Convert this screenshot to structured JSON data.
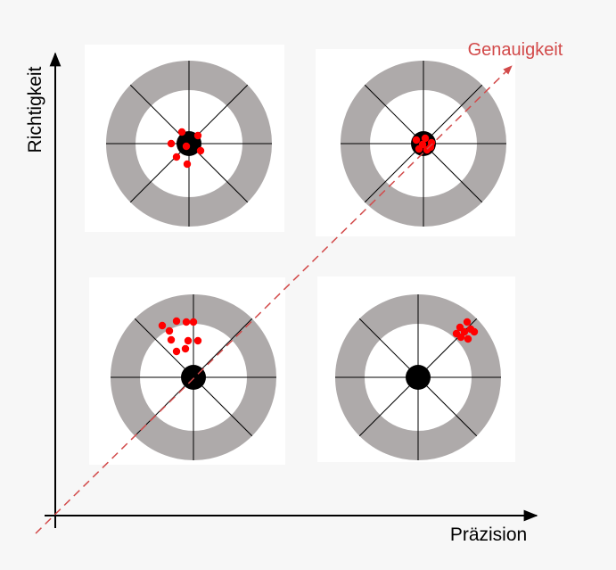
{
  "labels": {
    "y_axis": "Richtigkeit",
    "x_axis": "Präzision",
    "diagonal": "Genauigkeit"
  },
  "colors": {
    "background": "#f7f7f7",
    "panel": "#ffffff",
    "ring": "#aeaaaa",
    "bullseye": "#000000",
    "hits": "#ff0000",
    "diagonal": "#d24a4a"
  },
  "targets": [
    {
      "id": "top-left",
      "accuracy": "high",
      "precision": "low"
    },
    {
      "id": "top-right",
      "accuracy": "high",
      "precision": "high"
    },
    {
      "id": "bottom-left",
      "accuracy": "low",
      "precision": "low"
    },
    {
      "id": "bottom-right",
      "accuracy": "low",
      "precision": "high"
    }
  ]
}
